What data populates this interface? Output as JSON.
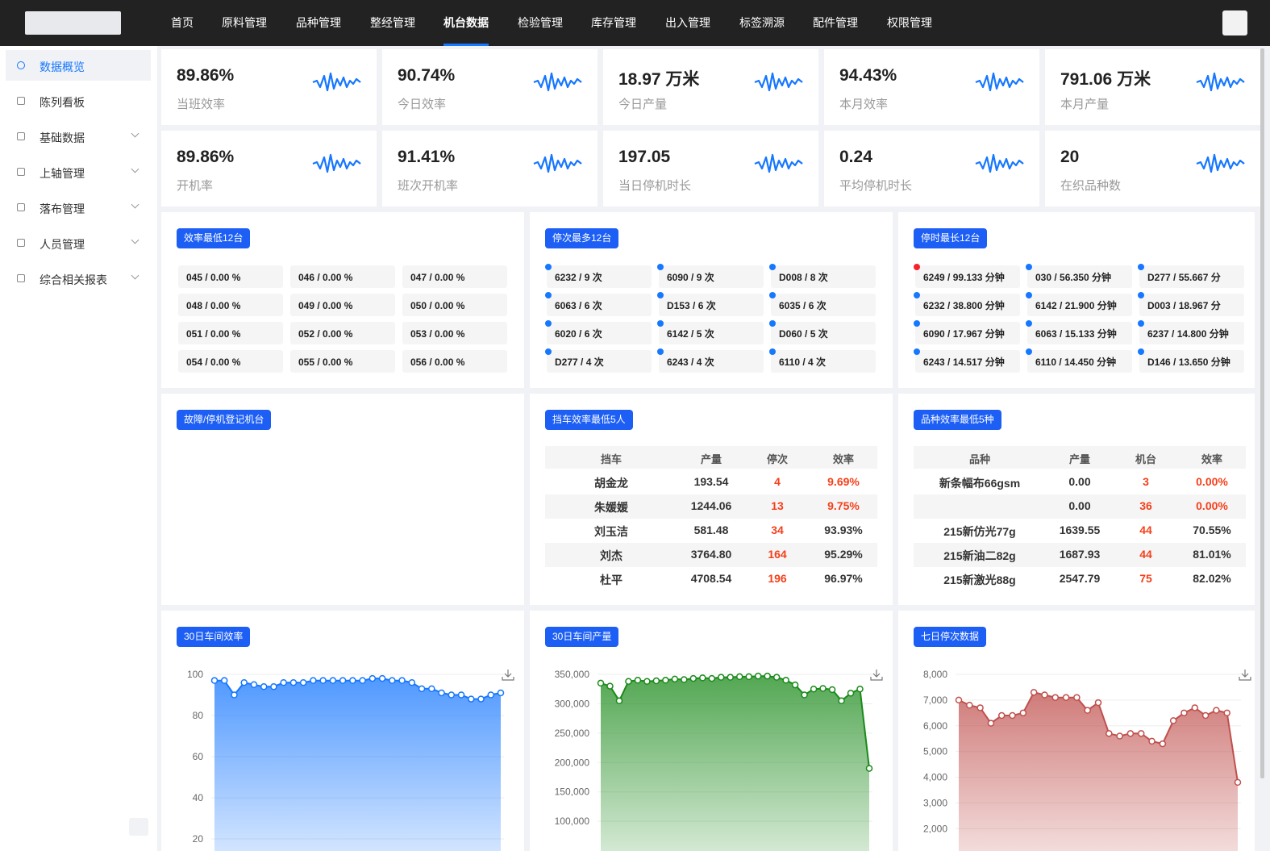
{
  "header": {
    "nav": [
      "首页",
      "原料管理",
      "品种管理",
      "整经管理",
      "机台数据",
      "检验管理",
      "库存管理",
      "出入管理",
      "标签溯源",
      "配件管理",
      "权限管理"
    ],
    "active": 4
  },
  "sidebar": {
    "items": [
      "数据概览",
      "陈列看板",
      "基础数据",
      "上轴管理",
      "落布管理",
      "人员管理",
      "综合相关报表"
    ],
    "active": 0,
    "expandable": [
      2,
      3,
      4,
      5,
      6
    ]
  },
  "kpis": [
    {
      "value": "89.86%",
      "label": "当班效率"
    },
    {
      "value": "90.74%",
      "label": "今日效率"
    },
    {
      "value": "18.97 万米",
      "label": "今日产量"
    },
    {
      "value": "94.43%",
      "label": "本月效率"
    },
    {
      "value": "791.06 万米",
      "label": "本月产量"
    },
    {
      "value": "89.86%",
      "label": "开机率"
    },
    {
      "value": "91.41%",
      "label": "班次开机率"
    },
    {
      "value": "197.05",
      "label": "当日停机时长"
    },
    {
      "value": "0.24",
      "label": "平均停机时长"
    },
    {
      "value": "20",
      "label": "在织品种数"
    }
  ],
  "lists": [
    {
      "title": "效率最低12台",
      "items": [
        {
          "text": "045 / 0.00 %"
        },
        {
          "text": "046 / 0.00 %"
        },
        {
          "text": "047 / 0.00 %"
        },
        {
          "text": "048 / 0.00 %"
        },
        {
          "text": "049 / 0.00 %"
        },
        {
          "text": "050 / 0.00 %"
        },
        {
          "text": "051 / 0.00 %"
        },
        {
          "text": "052 / 0.00 %"
        },
        {
          "text": "053 / 0.00 %"
        },
        {
          "text": "054 / 0.00 %"
        },
        {
          "text": "055 / 0.00 %"
        },
        {
          "text": "056 / 0.00 %"
        }
      ]
    },
    {
      "title": "停次最多12台",
      "items": [
        {
          "text": "6232 / 9 次",
          "dot": "#1677ff"
        },
        {
          "text": "6090 / 9 次",
          "dot": "#1677ff"
        },
        {
          "text": "D008 / 8 次",
          "dot": "#1677ff"
        },
        {
          "text": "6063 / 6 次",
          "dot": "#1677ff"
        },
        {
          "text": "D153 / 6 次",
          "dot": "#1677ff"
        },
        {
          "text": "6035 / 6 次",
          "dot": "#1677ff"
        },
        {
          "text": "6020 / 6 次",
          "dot": "#1677ff"
        },
        {
          "text": "6142 / 5 次",
          "dot": "#1677ff"
        },
        {
          "text": "D060 / 5 次",
          "dot": "#1677ff"
        },
        {
          "text": "D277 / 4 次",
          "dot": "#1677ff"
        },
        {
          "text": "6243 / 4 次",
          "dot": "#1677ff"
        },
        {
          "text": "6110 / 4 次",
          "dot": "#1677ff"
        }
      ]
    },
    {
      "title": "停时最长12台",
      "items": [
        {
          "text": "6249 / 99.133 分钟",
          "dot": "#f5222d"
        },
        {
          "text": "030 / 56.350 分钟",
          "dot": "#1677ff"
        },
        {
          "text": "D277 / 55.667 分",
          "dot": "#1677ff"
        },
        {
          "text": "6232 / 38.800 分钟",
          "dot": "#1677ff"
        },
        {
          "text": "6142 / 21.900 分钟",
          "dot": "#1677ff"
        },
        {
          "text": "D003 / 18.967 分",
          "dot": "#1677ff"
        },
        {
          "text": "6090 / 17.967 分钟",
          "dot": "#1677ff"
        },
        {
          "text": "6063 / 15.133 分钟",
          "dot": "#1677ff"
        },
        {
          "text": "6237 / 14.800 分钟",
          "dot": "#1677ff"
        },
        {
          "text": "6243 / 14.517 分钟",
          "dot": "#1677ff"
        },
        {
          "text": "6110 / 14.450 分钟",
          "dot": "#1677ff"
        },
        {
          "text": "D146 / 13.650 分钟",
          "dot": "#1677ff"
        }
      ]
    }
  ],
  "fault_panel": {
    "title": "故障/停机登记机台"
  },
  "tables": [
    {
      "title": "挡车效率最低5人",
      "columns": [
        "挡车",
        "产量",
        "停次",
        "效率"
      ],
      "rows": [
        [
          "胡金龙",
          "193.54",
          "4",
          "9.69%"
        ],
        [
          "朱媛媛",
          "1244.06",
          "13",
          "9.75%"
        ],
        [
          "刘玉洁",
          "581.48",
          "34",
          "93.93%"
        ],
        [
          "刘杰",
          "3764.80",
          "164",
          "95.29%"
        ],
        [
          "杜平",
          "4708.54",
          "196",
          "96.97%"
        ]
      ],
      "red_cells": [
        [
          0,
          2
        ],
        [
          0,
          3
        ],
        [
          1,
          2
        ],
        [
          1,
          3
        ],
        [
          2,
          2
        ],
        [
          3,
          2
        ],
        [
          4,
          2
        ]
      ]
    },
    {
      "title": "品种效率最低5种",
      "columns": [
        "品种",
        "产量",
        "机台",
        "效率"
      ],
      "rows": [
        [
          "新条幅布66gsm",
          "0.00",
          "3",
          "0.00%"
        ],
        [
          null,
          "0.00",
          "36",
          "0.00%"
        ],
        [
          "215新仿光77g",
          "1639.55",
          "44",
          "70.55%"
        ],
        [
          "215新油二82g",
          "1687.93",
          "44",
          "81.01%"
        ],
        [
          "215新激光88g",
          "2547.79",
          "75",
          "82.02%"
        ]
      ],
      "red_cells": [
        [
          0,
          2
        ],
        [
          0,
          3
        ],
        [
          1,
          2
        ],
        [
          1,
          3
        ],
        [
          2,
          2
        ],
        [
          3,
          2
        ],
        [
          4,
          2
        ]
      ]
    }
  ],
  "chart_data": [
    {
      "type": "area",
      "title": "30日车间效率",
      "color": "#1677ff",
      "values": [
        97,
        97,
        90,
        96,
        95,
        94,
        94,
        96,
        96,
        96,
        97,
        97,
        97,
        97,
        97,
        97,
        98,
        98,
        97,
        97,
        96,
        93,
        93,
        91,
        90,
        90,
        88,
        88,
        90,
        91
      ],
      "ylim": [
        0,
        100
      ],
      "yticks": [
        20,
        40,
        60,
        80,
        100
      ]
    },
    {
      "type": "area",
      "title": "30日车间产量",
      "color": "#1a8a1a",
      "values": [
        335000,
        330000,
        305000,
        338000,
        340000,
        338000,
        339000,
        340000,
        342000,
        341000,
        343000,
        344000,
        343000,
        345000,
        345000,
        346000,
        346000,
        347000,
        347000,
        345000,
        340000,
        332000,
        315000,
        325000,
        326000,
        324000,
        305000,
        318000,
        325000,
        190000
      ],
      "ylim": [
        0,
        350000
      ],
      "yticks": [
        {
          "value": 100000,
          "label": "100,000"
        },
        {
          "value": 150000,
          "label": "150,000"
        },
        {
          "value": 200000,
          "label": "200,000"
        },
        {
          "value": 250000,
          "label": "250,000"
        },
        {
          "value": 300000,
          "label": "300,000"
        },
        {
          "value": 350000,
          "label": "350,000"
        }
      ]
    },
    {
      "type": "area",
      "title": "七日停次数据",
      "color": "#c0504d",
      "values": [
        7000,
        6800,
        6700,
        6100,
        6400,
        6400,
        6500,
        7300,
        7200,
        7100,
        7100,
        7100,
        6600,
        6900,
        5700,
        5600,
        5700,
        5700,
        5400,
        5300,
        6200,
        6500,
        6700,
        6400,
        6600,
        6500,
        3800
      ],
      "ylim": [
        0,
        8000
      ],
      "yticks": [
        {
          "value": 2000,
          "label": "2,000"
        },
        {
          "value": 3000,
          "label": "3,000"
        },
        {
          "value": 4000,
          "label": "4,000"
        },
        {
          "value": 5000,
          "label": "5,000"
        },
        {
          "value": 6000,
          "label": "6,000"
        },
        {
          "value": 7000,
          "label": "7,000"
        },
        {
          "value": 8000,
          "label": "8,000"
        }
      ]
    }
  ]
}
